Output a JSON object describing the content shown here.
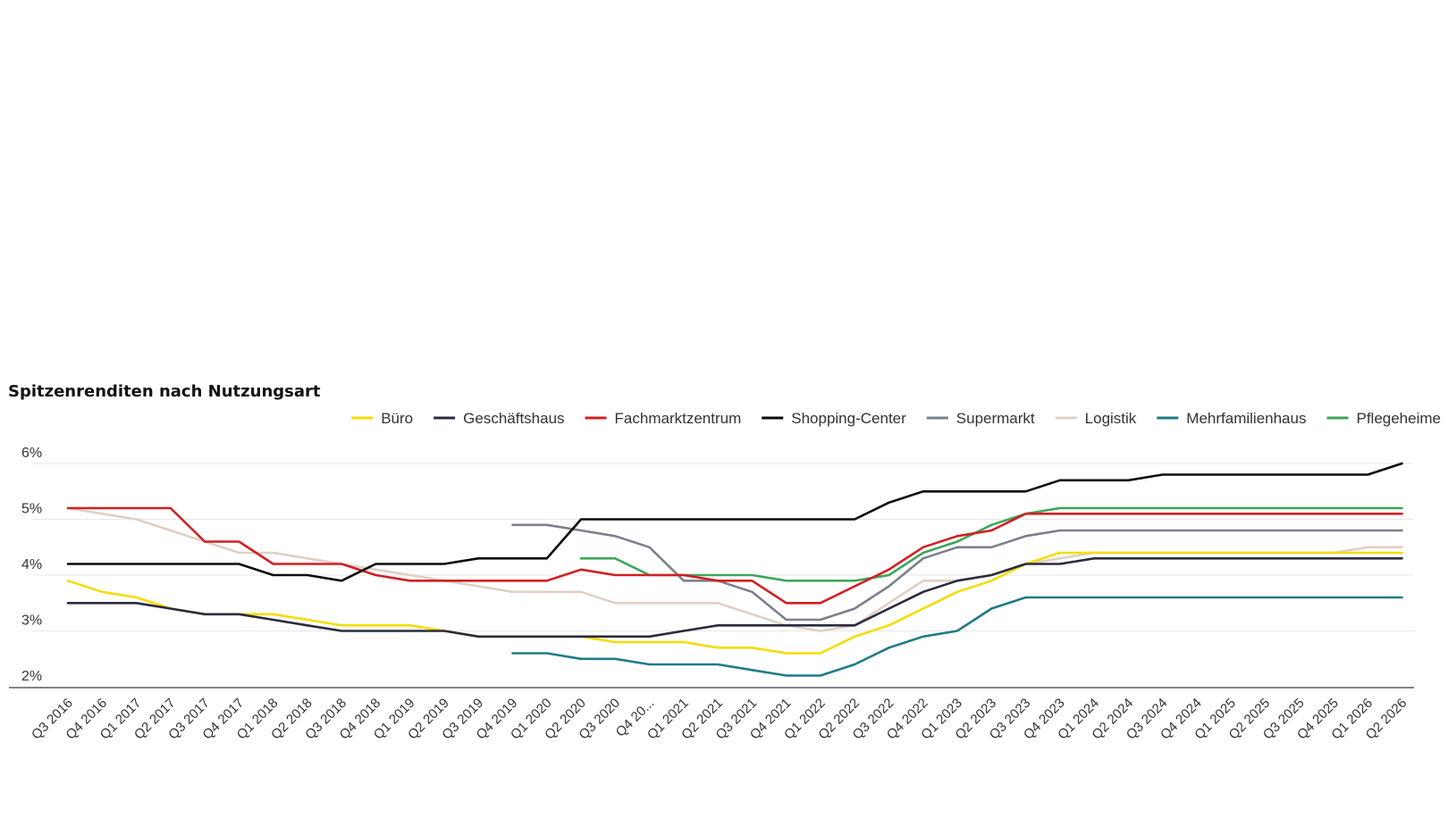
{
  "chart_data": {
    "type": "line",
    "title": "Spitzenrenditen nach Nutzungsart",
    "xlabel": "",
    "ylabel": "",
    "ylim": [
      2,
      6
    ],
    "yticks": [
      "2%",
      "3%",
      "4%",
      "5%",
      "6%"
    ],
    "ytick_values": [
      2,
      3,
      4,
      5,
      6
    ],
    "grid": true,
    "legend_position": "top-right",
    "categories": [
      "Q3 2016",
      "Q4 2016",
      "Q1 2017",
      "Q2 2017",
      "Q3 2017",
      "Q4 2017",
      "Q1 2018",
      "Q2 2018",
      "Q3 2018",
      "Q4 2018",
      "Q1 2019",
      "Q2 2019",
      "Q3 2019",
      "Q4 2019",
      "Q1 2020",
      "Q2 2020",
      "Q3 2020",
      "Q4 20...",
      "Q1 2021",
      "Q2 2021",
      "Q3 2021",
      "Q4 2021",
      "Q1 2022",
      "Q2 2022",
      "Q3 2022",
      "Q4 2022",
      "Q1 2023",
      "Q2 2023",
      "Q3 2023",
      "Q4 2023",
      "Q1 2024",
      "Q2 2024",
      "Q3 2024",
      "Q4 2024",
      "Q1 2025",
      "Q2 2025",
      "Q3 2025",
      "Q4 2025",
      "Q1 2026",
      "Q2 2026"
    ],
    "series": [
      {
        "name": "Büro",
        "color": "#f5dc00",
        "values": [
          3.9,
          3.7,
          3.6,
          3.4,
          3.3,
          3.3,
          3.3,
          3.2,
          3.1,
          3.1,
          3.1,
          3.0,
          2.9,
          2.9,
          2.9,
          2.9,
          2.8,
          2.8,
          2.8,
          2.7,
          2.7,
          2.6,
          2.6,
          2.9,
          3.1,
          3.4,
          3.7,
          3.9,
          4.2,
          4.4,
          4.4,
          4.4,
          4.4,
          4.4,
          4.4,
          4.4,
          4.4,
          4.4,
          4.4,
          4.4
        ]
      },
      {
        "name": "Geschäftshaus",
        "color": "#2b2b3f",
        "values": [
          3.5,
          3.5,
          3.5,
          3.4,
          3.3,
          3.3,
          3.2,
          3.1,
          3.0,
          3.0,
          3.0,
          3.0,
          2.9,
          2.9,
          2.9,
          2.9,
          2.9,
          2.9,
          3.0,
          3.1,
          3.1,
          3.1,
          3.1,
          3.1,
          3.4,
          3.7,
          3.9,
          4.0,
          4.2,
          4.2,
          4.3,
          4.3,
          4.3,
          4.3,
          4.3,
          4.3,
          4.3,
          4.3,
          4.3,
          4.3
        ]
      },
      {
        "name": "Fachmarktzentrum",
        "color": "#d11f23",
        "values": [
          5.2,
          5.2,
          5.2,
          5.2,
          4.6,
          4.6,
          4.2,
          4.2,
          4.2,
          4.0,
          3.9,
          3.9,
          3.9,
          3.9,
          3.9,
          4.1,
          4.0,
          4.0,
          4.0,
          3.9,
          3.9,
          3.5,
          3.5,
          3.8,
          4.1,
          4.5,
          4.7,
          4.8,
          5.1,
          5.1,
          5.1,
          5.1,
          5.1,
          5.1,
          5.1,
          5.1,
          5.1,
          5.1,
          5.1,
          5.1
        ]
      },
      {
        "name": "Shopping-Center",
        "color": "#0c0c0c",
        "values": [
          4.2,
          4.2,
          4.2,
          4.2,
          4.2,
          4.2,
          4.0,
          4.0,
          3.9,
          4.2,
          4.2,
          4.2,
          4.3,
          4.3,
          4.3,
          5.0,
          5.0,
          5.0,
          5.0,
          5.0,
          5.0,
          5.0,
          5.0,
          5.0,
          5.3,
          5.5,
          5.5,
          5.5,
          5.5,
          5.7,
          5.7,
          5.7,
          5.8,
          5.8,
          5.8,
          5.8,
          5.8,
          5.8,
          5.8,
          6.0
        ]
      },
      {
        "name": "Supermarkt",
        "color": "#7b818b",
        "values": [
          null,
          null,
          null,
          null,
          null,
          null,
          null,
          null,
          null,
          null,
          null,
          null,
          null,
          4.9,
          4.9,
          4.8,
          4.7,
          4.5,
          3.9,
          3.9,
          3.7,
          3.2,
          3.2,
          3.4,
          3.8,
          4.3,
          4.5,
          4.5,
          4.7,
          4.8,
          4.8,
          4.8,
          4.8,
          4.8,
          4.8,
          4.8,
          4.8,
          4.8,
          4.8,
          4.8
        ]
      },
      {
        "name": "Logistik",
        "color": "#ddd0c6",
        "values": [
          5.2,
          5.1,
          5.0,
          4.8,
          4.6,
          4.4,
          4.4,
          4.3,
          4.2,
          4.1,
          4.0,
          3.9,
          3.8,
          3.7,
          3.7,
          3.7,
          3.5,
          3.5,
          3.5,
          3.5,
          3.3,
          3.1,
          3.0,
          3.1,
          3.5,
          3.9,
          3.9,
          4.0,
          4.2,
          4.3,
          4.4,
          4.4,
          4.4,
          4.4,
          4.4,
          4.4,
          4.4,
          4.4,
          4.5,
          4.5
        ]
      },
      {
        "name": "Mehrfamilienhaus",
        "color": "#1f7b88",
        "values": [
          null,
          null,
          null,
          null,
          null,
          null,
          null,
          null,
          null,
          null,
          null,
          null,
          null,
          2.6,
          2.6,
          2.5,
          2.5,
          2.4,
          2.4,
          2.4,
          2.3,
          2.2,
          2.2,
          2.4,
          2.7,
          2.9,
          3.0,
          3.4,
          3.6,
          3.6,
          3.6,
          3.6,
          3.6,
          3.6,
          3.6,
          3.6,
          3.6,
          3.6,
          3.6,
          3.6
        ]
      },
      {
        "name": "Pflegeheime",
        "color": "#3da65a",
        "values": [
          null,
          null,
          null,
          null,
          null,
          null,
          null,
          null,
          null,
          null,
          null,
          null,
          null,
          null,
          null,
          4.3,
          4.3,
          4.0,
          4.0,
          4.0,
          4.0,
          3.9,
          3.9,
          3.9,
          4.0,
          4.4,
          4.6,
          4.9,
          5.1,
          5.2,
          5.2,
          5.2,
          5.2,
          5.2,
          5.2,
          5.2,
          5.2,
          5.2,
          5.2,
          5.2
        ]
      }
    ]
  }
}
